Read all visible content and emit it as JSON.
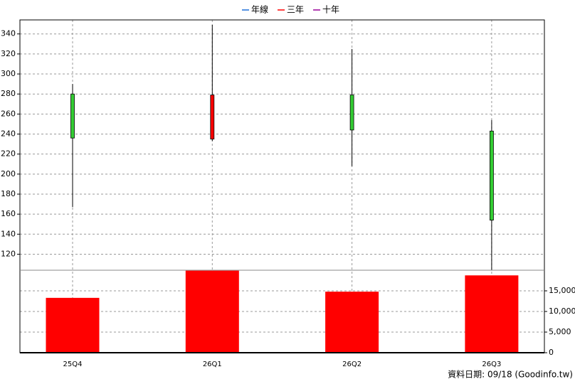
{
  "chart_data": [
    {
      "type": "candlestick",
      "legend": [
        {
          "name": "年線",
          "color": "#1e6fd9"
        },
        {
          "name": "三年",
          "color": "#ff0000"
        },
        {
          "name": "十年",
          "color": "#990099"
        }
      ],
      "open": [
        280,
        235,
        279,
        243
      ],
      "high": [
        290,
        349,
        325,
        254
      ],
      "low": [
        167,
        233,
        208,
        104
      ],
      "close": [
        236,
        279,
        244,
        154
      ],
      "up_color": "#ff0000",
      "down_color": "#33cc33",
      "ylim": [
        104,
        354
      ],
      "yticks": [
        120,
        140,
        160,
        180,
        200,
        220,
        240,
        260,
        280,
        300,
        320,
        340
      ],
      "grid": true
    },
    {
      "type": "bar",
      "categories": [
        "25Q4",
        "26Q1",
        "26Q2",
        "26Q3"
      ],
      "values": [
        13300,
        19900,
        14800,
        18750
      ],
      "color": "#ff0000",
      "ylim": [
        0,
        20000
      ],
      "yticks": [
        0,
        {
          "value": 5000,
          "label": "5,000"
        },
        {
          "value": 10000,
          "label": "10,000"
        },
        {
          "value": 15000,
          "label": "15,000"
        }
      ],
      "grid": true
    }
  ],
  "source": "資料日期: 09/18  (Goodinfo.tw)"
}
